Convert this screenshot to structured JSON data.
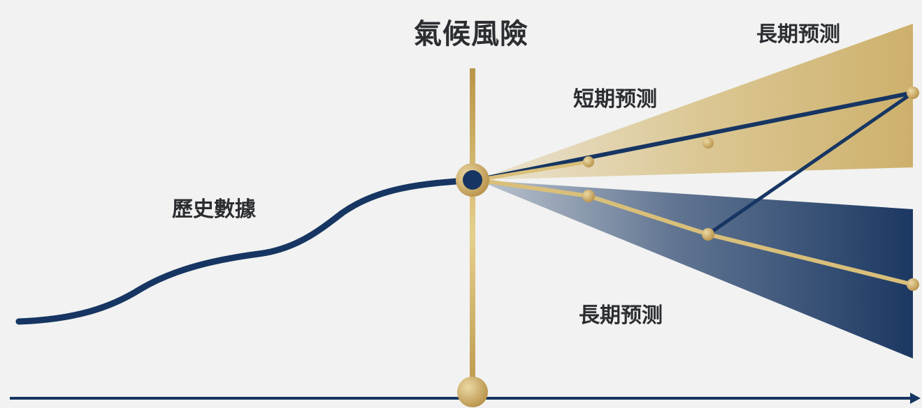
{
  "title": "氣候風險",
  "labels": {
    "historical": "歷史數據",
    "short_term": "短期预测",
    "long_term_upper": "長期预测",
    "long_term_lower": "長期预测"
  },
  "colors": {
    "navy": "#163562",
    "gold": "#c9a85b",
    "gold_light": "#e0c98d",
    "background": "#f1f2f1",
    "text": "#2b2d31"
  }
}
